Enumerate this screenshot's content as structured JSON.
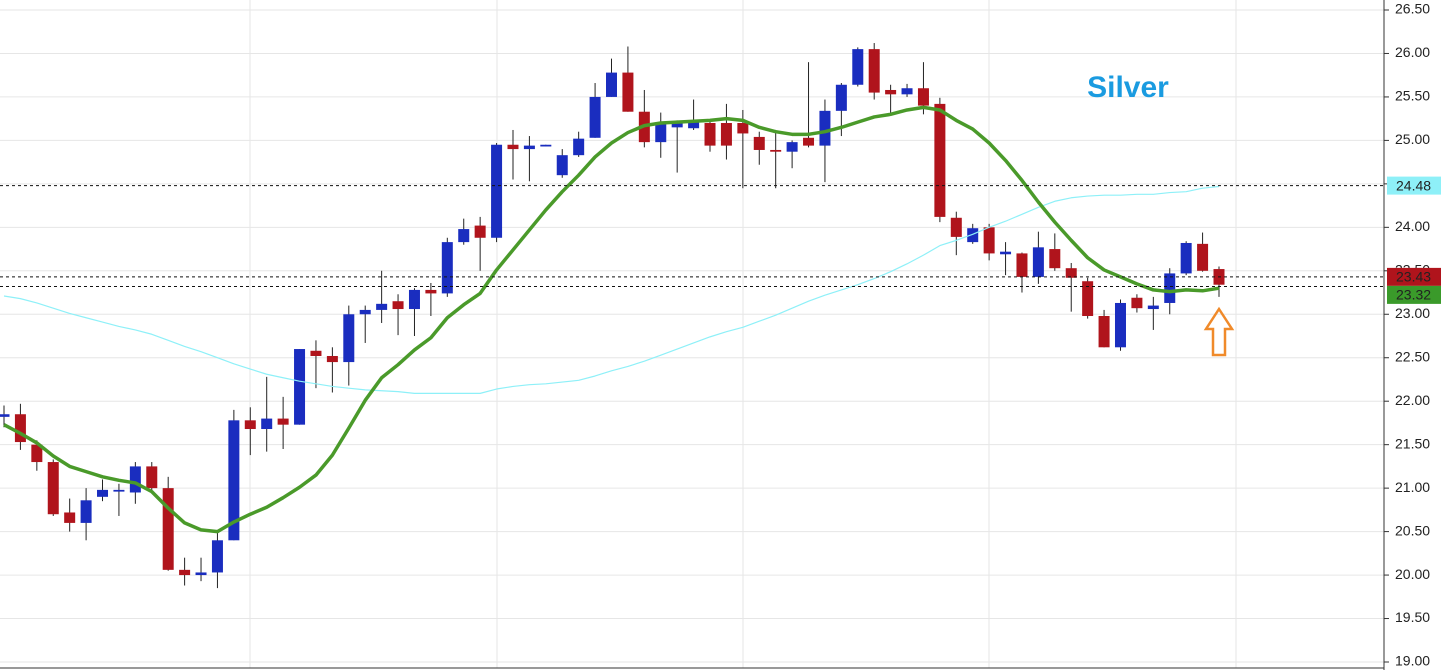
{
  "chart_data": {
    "type": "candlestick",
    "title": "Silver",
    "title_color": "#1a9be0",
    "up_color": "#1a2dbf",
    "down_color": "#b0141c",
    "ylim": [
      19,
      26.5
    ],
    "yticks": [
      {
        "value": 19,
        "label": "19.00"
      },
      {
        "value": 19.5,
        "label": "19.50"
      },
      {
        "value": 20,
        "label": "20.00"
      },
      {
        "value": 20.5,
        "label": "20.50"
      },
      {
        "value": 21,
        "label": "21.00"
      },
      {
        "value": 21.5,
        "label": "21.50"
      },
      {
        "value": 22,
        "label": "22.00"
      },
      {
        "value": 22.5,
        "label": "22.50"
      },
      {
        "value": 23,
        "label": "23.00"
      },
      {
        "value": 23.5,
        "label": "23.50"
      },
      {
        "value": 24,
        "label": "24.00"
      },
      {
        "value": 24.5,
        "label": "24.50"
      },
      {
        "value": 25,
        "label": "25.00"
      },
      {
        "value": 25.5,
        "label": "25.50"
      },
      {
        "value": 26,
        "label": "26.00"
      },
      {
        "value": 26.5,
        "label": "26.50"
      }
    ],
    "grid": true,
    "open": [
      21.82,
      21.85,
      21.5,
      21.3,
      20.72,
      20.6,
      20.9,
      20.96,
      20.95,
      21.25,
      21.0,
      20.06,
      20.0,
      20.03,
      20.4,
      21.78,
      21.68,
      21.8,
      21.73,
      22.58,
      22.52,
      22.45,
      23.0,
      23.05,
      23.15,
      23.06,
      23.28,
      23.24,
      23.83,
      24.02,
      23.88,
      24.95,
      24.9,
      24.93,
      24.6,
      24.83,
      25.03,
      25.5,
      25.78,
      25.33,
      24.98,
      25.15,
      25.14,
      25.2,
      25.2,
      25.2,
      25.04,
      24.89,
      24.87,
      25.03,
      24.94,
      25.34,
      25.64,
      26.05,
      25.58,
      25.53,
      25.6,
      25.42,
      24.11,
      23.83,
      24.0,
      23.69,
      23.7,
      23.43,
      23.75,
      23.53,
      23.38,
      22.98,
      22.62,
      23.19,
      23.06,
      23.13,
      23.47,
      23.81,
      23.52
    ],
    "high": [
      21.95,
      21.97,
      21.55,
      21.33,
      20.88,
      21.0,
      21.1,
      21.05,
      21.3,
      21.3,
      21.13,
      20.2,
      20.2,
      20.5,
      21.9,
      21.93,
      22.28,
      22.05,
      22.6,
      22.7,
      22.62,
      23.1,
      23.1,
      23.5,
      23.23,
      23.3,
      23.36,
      23.88,
      24.1,
      24.12,
      24.97,
      25.12,
      25.05,
      24.95,
      24.9,
      25.1,
      25.66,
      25.94,
      26.08,
      25.58,
      25.32,
      25.23,
      25.47,
      25.23,
      25.42,
      25.35,
      25.1,
      25.12,
      25.0,
      25.9,
      25.47,
      25.66,
      26.07,
      26.12,
      25.64,
      25.65,
      25.9,
      25.49,
      24.18,
      24.04,
      24.04,
      23.83,
      23.71,
      23.95,
      23.93,
      23.59,
      23.42,
      23.05,
      23.17,
      23.23,
      23.2,
      23.53,
      23.84,
      23.94,
      23.55
    ],
    "low": [
      21.7,
      21.44,
      21.2,
      20.68,
      20.5,
      20.4,
      20.85,
      20.68,
      20.82,
      20.97,
      20.05,
      19.88,
      19.93,
      19.85,
      20.4,
      21.38,
      21.42,
      21.45,
      21.73,
      22.15,
      22.1,
      22.18,
      22.67,
      22.9,
      22.76,
      22.75,
      22.98,
      23.2,
      23.8,
      23.5,
      23.83,
      24.55,
      24.53,
      24.93,
      24.57,
      24.81,
      25.03,
      25.5,
      25.33,
      24.92,
      24.8,
      24.63,
      25.12,
      24.87,
      24.78,
      24.45,
      24.72,
      24.45,
      24.68,
      24.92,
      24.52,
      25.05,
      25.62,
      25.47,
      25.3,
      25.5,
      25.3,
      24.06,
      23.68,
      23.81,
      23.62,
      23.45,
      23.25,
      23.35,
      23.5,
      23.03,
      22.95,
      22.62,
      22.58,
      23.02,
      22.82,
      23.0,
      23.45,
      23.49,
      23.2
    ],
    "close": [
      21.85,
      21.53,
      21.3,
      20.7,
      20.6,
      20.86,
      20.98,
      20.98,
      21.25,
      21.0,
      20.06,
      20.0,
      20.03,
      20.4,
      21.78,
      21.68,
      21.8,
      21.73,
      22.6,
      22.52,
      22.45,
      23.0,
      23.05,
      23.12,
      23.06,
      23.28,
      23.24,
      23.83,
      23.98,
      23.88,
      24.95,
      24.9,
      24.94,
      24.95,
      24.83,
      25.02,
      25.5,
      25.78,
      25.33,
      24.98,
      25.2,
      25.22,
      25.23,
      24.94,
      24.94,
      25.08,
      24.89,
      24.87,
      24.98,
      24.94,
      25.34,
      25.64,
      26.05,
      25.55,
      25.53,
      25.6,
      25.4,
      24.12,
      23.89,
      23.99,
      23.7,
      23.72,
      23.43,
      23.77,
      23.53,
      23.42,
      22.98,
      22.62,
      23.13,
      23.07,
      23.1,
      23.47,
      23.82,
      23.5,
      23.34
    ],
    "moving_averages": [
      {
        "color": "#8ef0f8",
        "width": 1.2,
        "values": [
          23.21,
          23.18,
          23.13,
          23.07,
          23.01,
          22.96,
          22.91,
          22.86,
          22.82,
          22.77,
          22.7,
          22.63,
          22.57,
          22.5,
          22.43,
          22.37,
          22.31,
          22.27,
          22.23,
          22.2,
          22.17,
          22.15,
          22.13,
          22.12,
          22.11,
          22.09,
          22.09,
          22.09,
          22.09,
          22.09,
          22.14,
          22.17,
          22.19,
          22.2,
          22.22,
          22.24,
          22.29,
          22.35,
          22.4,
          22.46,
          22.53,
          22.6,
          22.67,
          22.74,
          22.8,
          22.85,
          22.92,
          22.99,
          23.07,
          23.15,
          23.22,
          23.28,
          23.34,
          23.41,
          23.49,
          23.58,
          23.68,
          23.79,
          23.85,
          23.92,
          24.0,
          24.07,
          24.15,
          24.23,
          24.3,
          24.34,
          24.36,
          24.37,
          24.37,
          24.38,
          24.38,
          24.4,
          24.41,
          24.45,
          24.47
        ]
      },
      {
        "color": "#4a9a2a",
        "width": 3.5,
        "values": [
          21.73,
          21.63,
          21.52,
          21.37,
          21.25,
          21.19,
          21.13,
          21.09,
          21.06,
          20.96,
          20.77,
          20.6,
          20.52,
          20.5,
          20.61,
          20.7,
          20.78,
          20.89,
          21.01,
          21.15,
          21.38,
          21.69,
          22.01,
          22.27,
          22.42,
          22.59,
          22.73,
          22.96,
          23.11,
          23.24,
          23.51,
          23.74,
          23.97,
          24.2,
          24.41,
          24.6,
          24.81,
          24.97,
          25.09,
          25.17,
          25.2,
          25.21,
          25.22,
          25.23,
          25.25,
          25.23,
          25.15,
          25.1,
          25.07,
          25.07,
          25.1,
          25.15,
          25.21,
          25.27,
          25.3,
          25.35,
          25.38,
          25.35,
          25.23,
          25.13,
          24.97,
          24.77,
          24.54,
          24.29,
          24.06,
          23.85,
          23.65,
          23.51,
          23.43,
          23.35,
          23.28,
          23.26,
          23.28,
          23.27,
          23.3
        ]
      }
    ],
    "price_lines": [
      {
        "value": 24.48,
        "color": "#8ef0f8",
        "text_color": "#222"
      },
      {
        "value": 23.43,
        "color": "#b0141c",
        "text_color": "#fff"
      },
      {
        "value": 23.32,
        "color": "#3a9a2a",
        "text_color": "#fff"
      }
    ]
  }
}
